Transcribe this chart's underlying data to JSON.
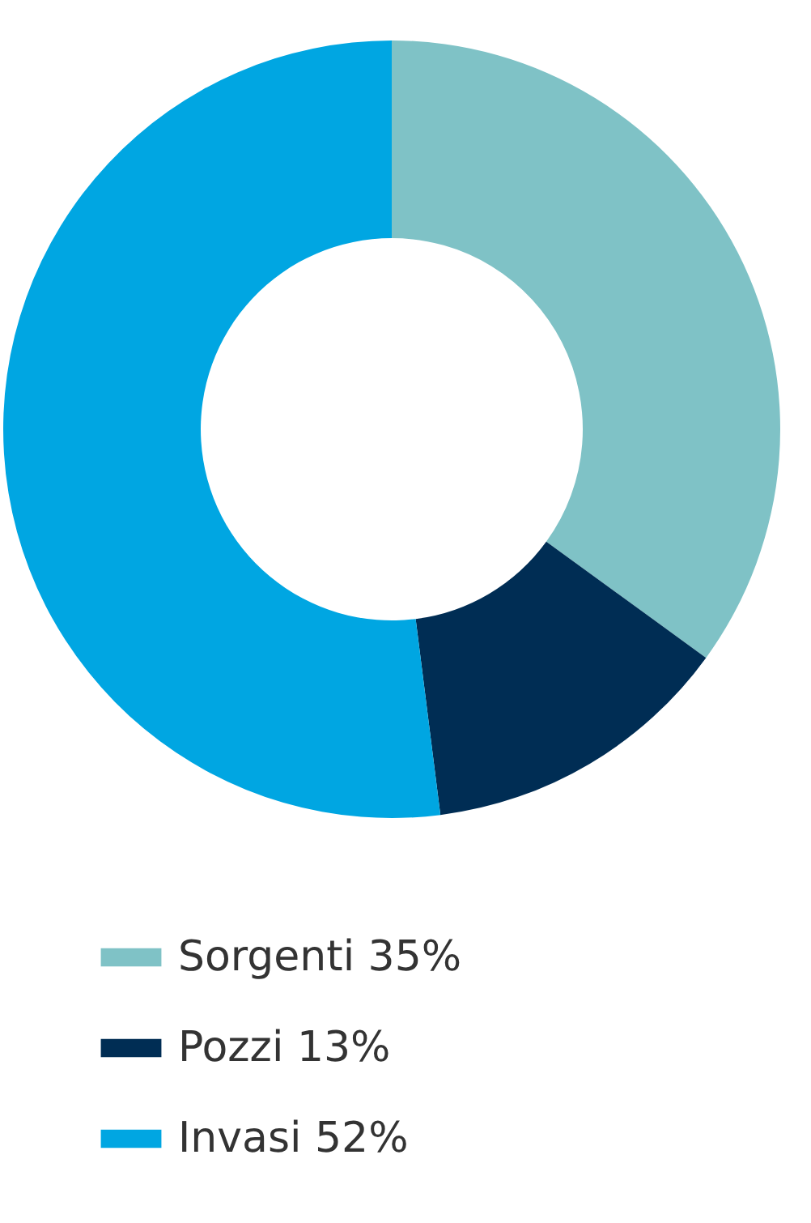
{
  "chart_data": {
    "type": "donut",
    "categories": [
      "Sorgenti",
      "Pozzi",
      "Invasi"
    ],
    "values": [
      35,
      13,
      52
    ],
    "value_labels": [
      "35%",
      "13%",
      "52%"
    ],
    "colors": [
      "#7fc2c6",
      "#002d54",
      "#00a6e2"
    ],
    "legend": "bottom"
  }
}
